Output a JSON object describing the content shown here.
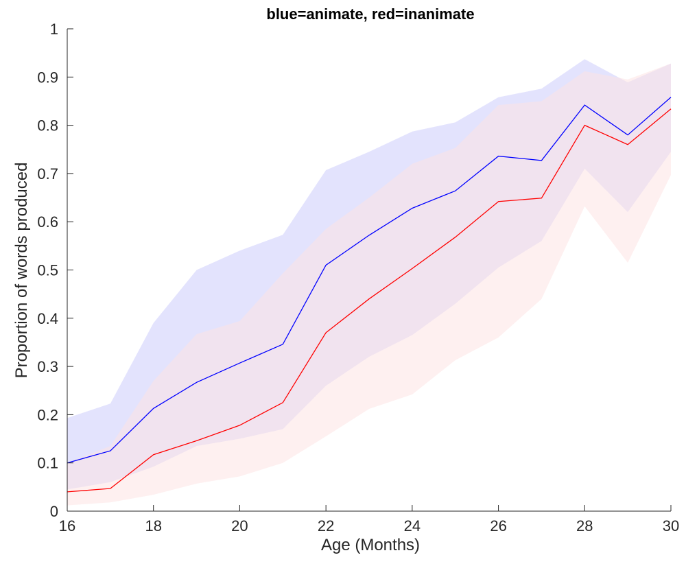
{
  "chart_data": {
    "type": "line",
    "title": "blue=animate, red=inanimate",
    "xlabel": "Age (Months)",
    "ylabel": "Proportion of words produced",
    "xlim": [
      16,
      30
    ],
    "ylim": [
      0,
      1
    ],
    "x_ticks": [
      16,
      18,
      20,
      22,
      24,
      26,
      28,
      30
    ],
    "x_tick_labels": [
      "16",
      "18",
      "20",
      "22",
      "24",
      "26",
      "28",
      "30"
    ],
    "y_ticks": [
      0,
      0.1,
      0.2,
      0.3,
      0.4,
      0.5,
      0.6,
      0.7,
      0.8,
      0.9,
      1
    ],
    "y_tick_labels": [
      "0",
      "0.1",
      "0.2",
      "0.3",
      "0.4",
      "0.5",
      "0.6",
      "0.7",
      "0.8",
      "0.9",
      "1"
    ],
    "grid": false,
    "x": [
      16,
      17,
      18,
      19,
      20,
      21,
      22,
      23,
      24,
      25,
      26,
      27,
      28,
      29,
      30
    ],
    "series": [
      {
        "color": "#0000ff",
        "band_color": "#e3e3fd",
        "values": [
          0.1,
          0.125,
          0.213,
          0.267,
          0.307,
          0.346,
          0.51,
          0.572,
          0.628,
          0.664,
          0.736,
          0.727,
          0.842,
          0.78,
          0.858
        ],
        "upper": [
          0.193,
          0.223,
          0.39,
          0.5,
          0.54,
          0.573,
          0.707,
          0.745,
          0.787,
          0.806,
          0.858,
          0.876,
          0.937,
          0.889,
          0.928
        ],
        "lower": [
          0.045,
          0.06,
          0.092,
          0.135,
          0.15,
          0.17,
          0.26,
          0.32,
          0.365,
          0.43,
          0.505,
          0.56,
          0.71,
          0.62,
          0.745
        ]
      },
      {
        "color": "#ff0000",
        "band_color": "#fde3e3",
        "values": [
          0.04,
          0.047,
          0.117,
          0.146,
          0.178,
          0.225,
          0.37,
          0.44,
          0.503,
          0.568,
          0.642,
          0.649,
          0.8,
          0.76,
          0.834
        ],
        "upper": [
          0.1,
          0.135,
          0.27,
          0.367,
          0.394,
          0.493,
          0.585,
          0.65,
          0.72,
          0.753,
          0.842,
          0.85,
          0.912,
          0.895,
          0.928
        ],
        "lower": [
          0.012,
          0.018,
          0.034,
          0.057,
          0.072,
          0.1,
          0.155,
          0.212,
          0.242,
          0.313,
          0.36,
          0.44,
          0.632,
          0.515,
          0.697
        ]
      }
    ]
  }
}
